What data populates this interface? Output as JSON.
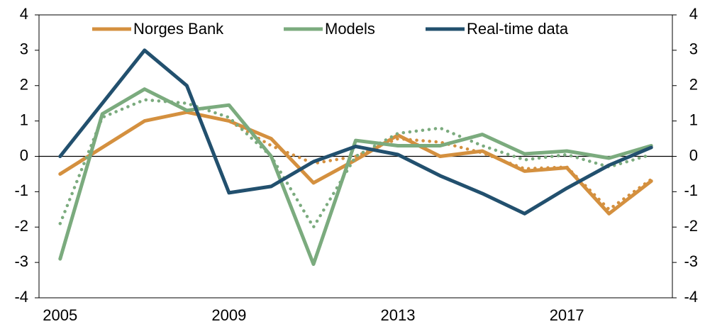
{
  "chart_data": {
    "type": "line",
    "x": [
      2005,
      2006,
      2007,
      2008,
      2009,
      2010,
      2011,
      2012,
      2013,
      2014,
      2015,
      2016,
      2017,
      2018,
      2019
    ],
    "xlim": [
      2004.5,
      2019.5
    ],
    "xticks": [
      2005,
      2009,
      2013,
      2017
    ],
    "ylim": [
      -4,
      4
    ],
    "yticks": [
      -4,
      -3,
      -2,
      -1,
      0,
      1,
      2,
      3,
      4
    ],
    "y2lim": [
      -4,
      4
    ],
    "y2ticks": [
      -4,
      -3,
      -2,
      -1,
      0,
      1,
      2,
      3,
      4
    ],
    "zero_line": true,
    "series": [
      {
        "name": "Norges Bank",
        "color": "#d4903f",
        "style": "solid",
        "values": [
          -0.5,
          0.25,
          1.0,
          1.25,
          1.0,
          0.5,
          -0.75,
          -0.1,
          0.6,
          0.0,
          0.15,
          -0.42,
          -0.32,
          -1.62,
          -0.7
        ]
      },
      {
        "color": "#d4903f",
        "style": "dotted",
        "values": [
          null,
          null,
          null,
          1.25,
          1.0,
          0.3,
          -0.2,
          0.0,
          0.5,
          0.4,
          0.1,
          -0.35,
          -0.3,
          -1.5,
          -0.65
        ]
      },
      {
        "name": "Models",
        "color": "#7bab7e",
        "style": "solid",
        "values": [
          -2.9,
          1.2,
          1.9,
          1.3,
          1.45,
          0.0,
          -3.05,
          0.45,
          0.3,
          0.3,
          0.62,
          0.07,
          0.15,
          -0.05,
          0.3
        ]
      },
      {
        "color": "#7bab7e",
        "style": "dotted",
        "values": [
          -1.9,
          1.1,
          1.6,
          1.5,
          1.1,
          0.0,
          -2.0,
          0.0,
          0.65,
          0.8,
          0.3,
          -0.1,
          0.05,
          -0.3,
          0.05
        ]
      },
      {
        "name": "Real-time data",
        "color": "#22506e",
        "style": "solid",
        "values": [
          0.0,
          1.5,
          3.0,
          2.0,
          -1.03,
          -0.85,
          -0.15,
          0.28,
          0.05,
          -0.55,
          -1.05,
          -1.62,
          -0.9,
          -0.25,
          0.25
        ]
      }
    ]
  }
}
